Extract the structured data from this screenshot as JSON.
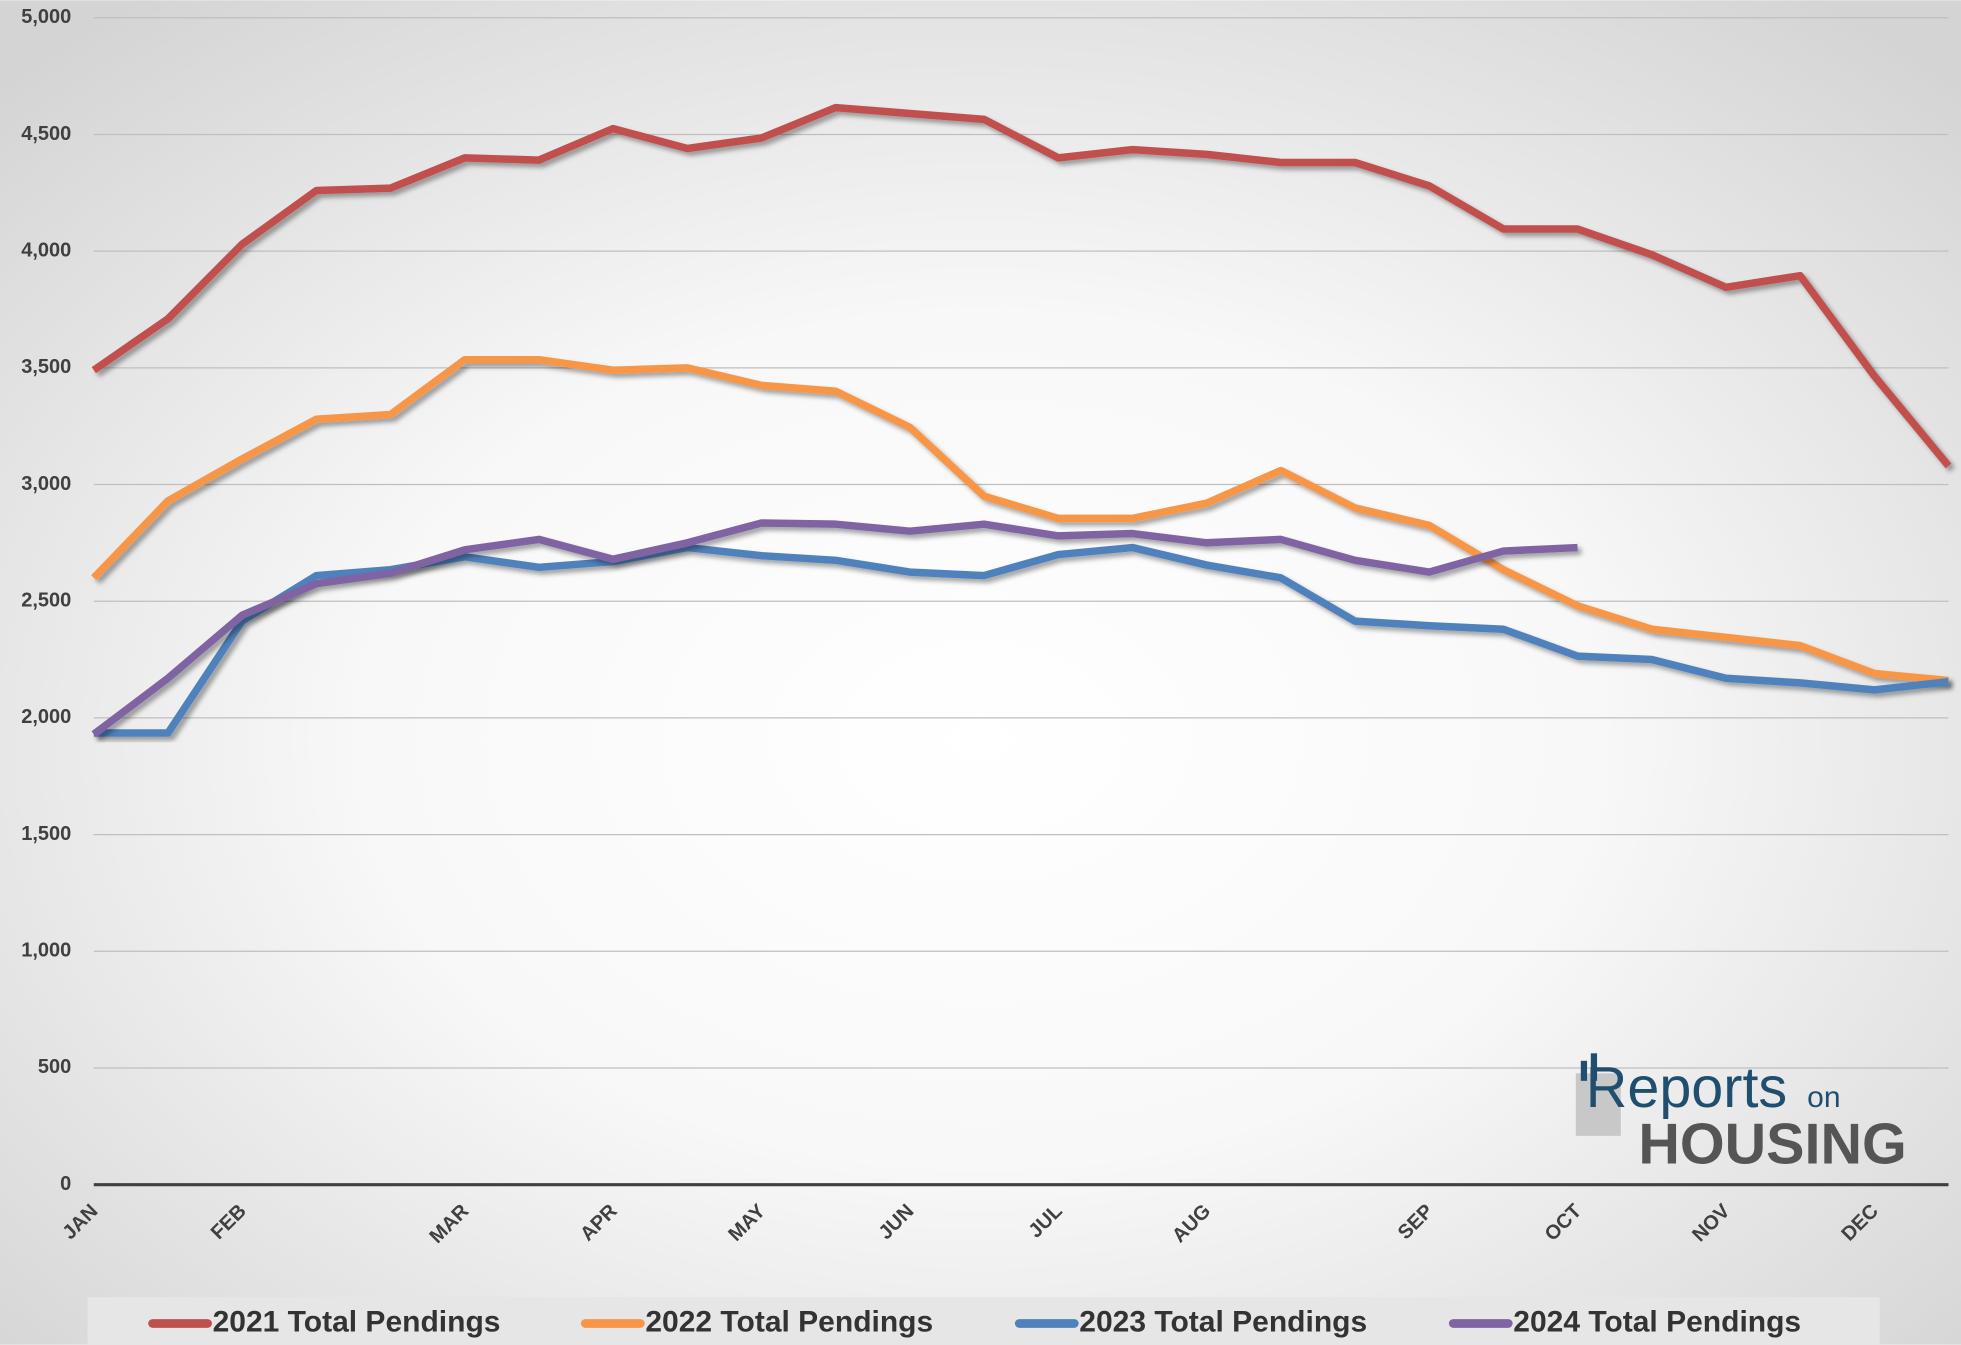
{
  "chart_data": {
    "type": "line",
    "categories": [
      "JAN",
      null,
      "FEB",
      null,
      null,
      "MAR",
      null,
      "APR",
      null,
      "MAY",
      null,
      "JUN",
      null,
      "JUL",
      null,
      "AUG",
      null,
      null,
      "SEP",
      null,
      "OCT",
      null,
      "NOV",
      null,
      "DEC",
      null
    ],
    "series": [
      {
        "name": "2021 Total Pendings",
        "color": "#c0504d",
        "values": [
          3490,
          3710,
          4030,
          4260,
          4270,
          4400,
          4390,
          4525,
          4440,
          4485,
          4615,
          4590,
          4565,
          4400,
          4435,
          4415,
          4380,
          4380,
          4280,
          4095,
          4095,
          3985,
          3845,
          3895,
          3465,
          3080
        ]
      },
      {
        "name": "2022 Total Pendings",
        "color": "#f79646",
        "values": [
          2600,
          2930,
          3110,
          3280,
          3300,
          3535,
          3535,
          3490,
          3500,
          3425,
          3400,
          3245,
          2950,
          2855,
          2855,
          2920,
          3060,
          2900,
          2825,
          2635,
          2480,
          2380,
          2345,
          2310,
          2190,
          2160
        ]
      },
      {
        "name": "2023 Total Pendings",
        "color": "#4f81bd",
        "values": [
          1935,
          1935,
          2415,
          2610,
          2635,
          2690,
          2645,
          2670,
          2730,
          2695,
          2675,
          2625,
          2610,
          2700,
          2730,
          2655,
          2600,
          2415,
          2395,
          2380,
          2265,
          2250,
          2170,
          2150,
          2120,
          2155
        ]
      },
      {
        "name": "2024 Total Pendings",
        "color": "#8064a2",
        "values": [
          1930,
          2170,
          2440,
          2575,
          2620,
          2720,
          2765,
          2680,
          2750,
          2835,
          2830,
          2800,
          2830,
          2780,
          2790,
          2750,
          2765,
          2675,
          2625,
          2715,
          2730,
          null,
          null,
          null,
          null,
          null
        ]
      }
    ],
    "ylim": [
      0,
      5000
    ],
    "yticks": [
      0,
      {
        "value": 500,
        "label": "500"
      },
      {
        "value": 1000,
        "label": "1,000"
      },
      {
        "value": 1500,
        "label": "1,500"
      },
      {
        "value": 2000,
        "label": "2,000"
      },
      {
        "value": 2500,
        "label": "2,500"
      },
      {
        "value": 3000,
        "label": "3,000"
      },
      {
        "value": 3500,
        "label": "3,500"
      },
      {
        "value": 4000,
        "label": "4,000"
      },
      {
        "value": 4500,
        "label": "4,500"
      },
      {
        "value": 5000,
        "label": "5,000"
      }
    ],
    "grid": true,
    "legend": "bottom",
    "logo": {
      "line1": "Reports",
      "line1b": "on",
      "line2": "HOUSING"
    }
  }
}
